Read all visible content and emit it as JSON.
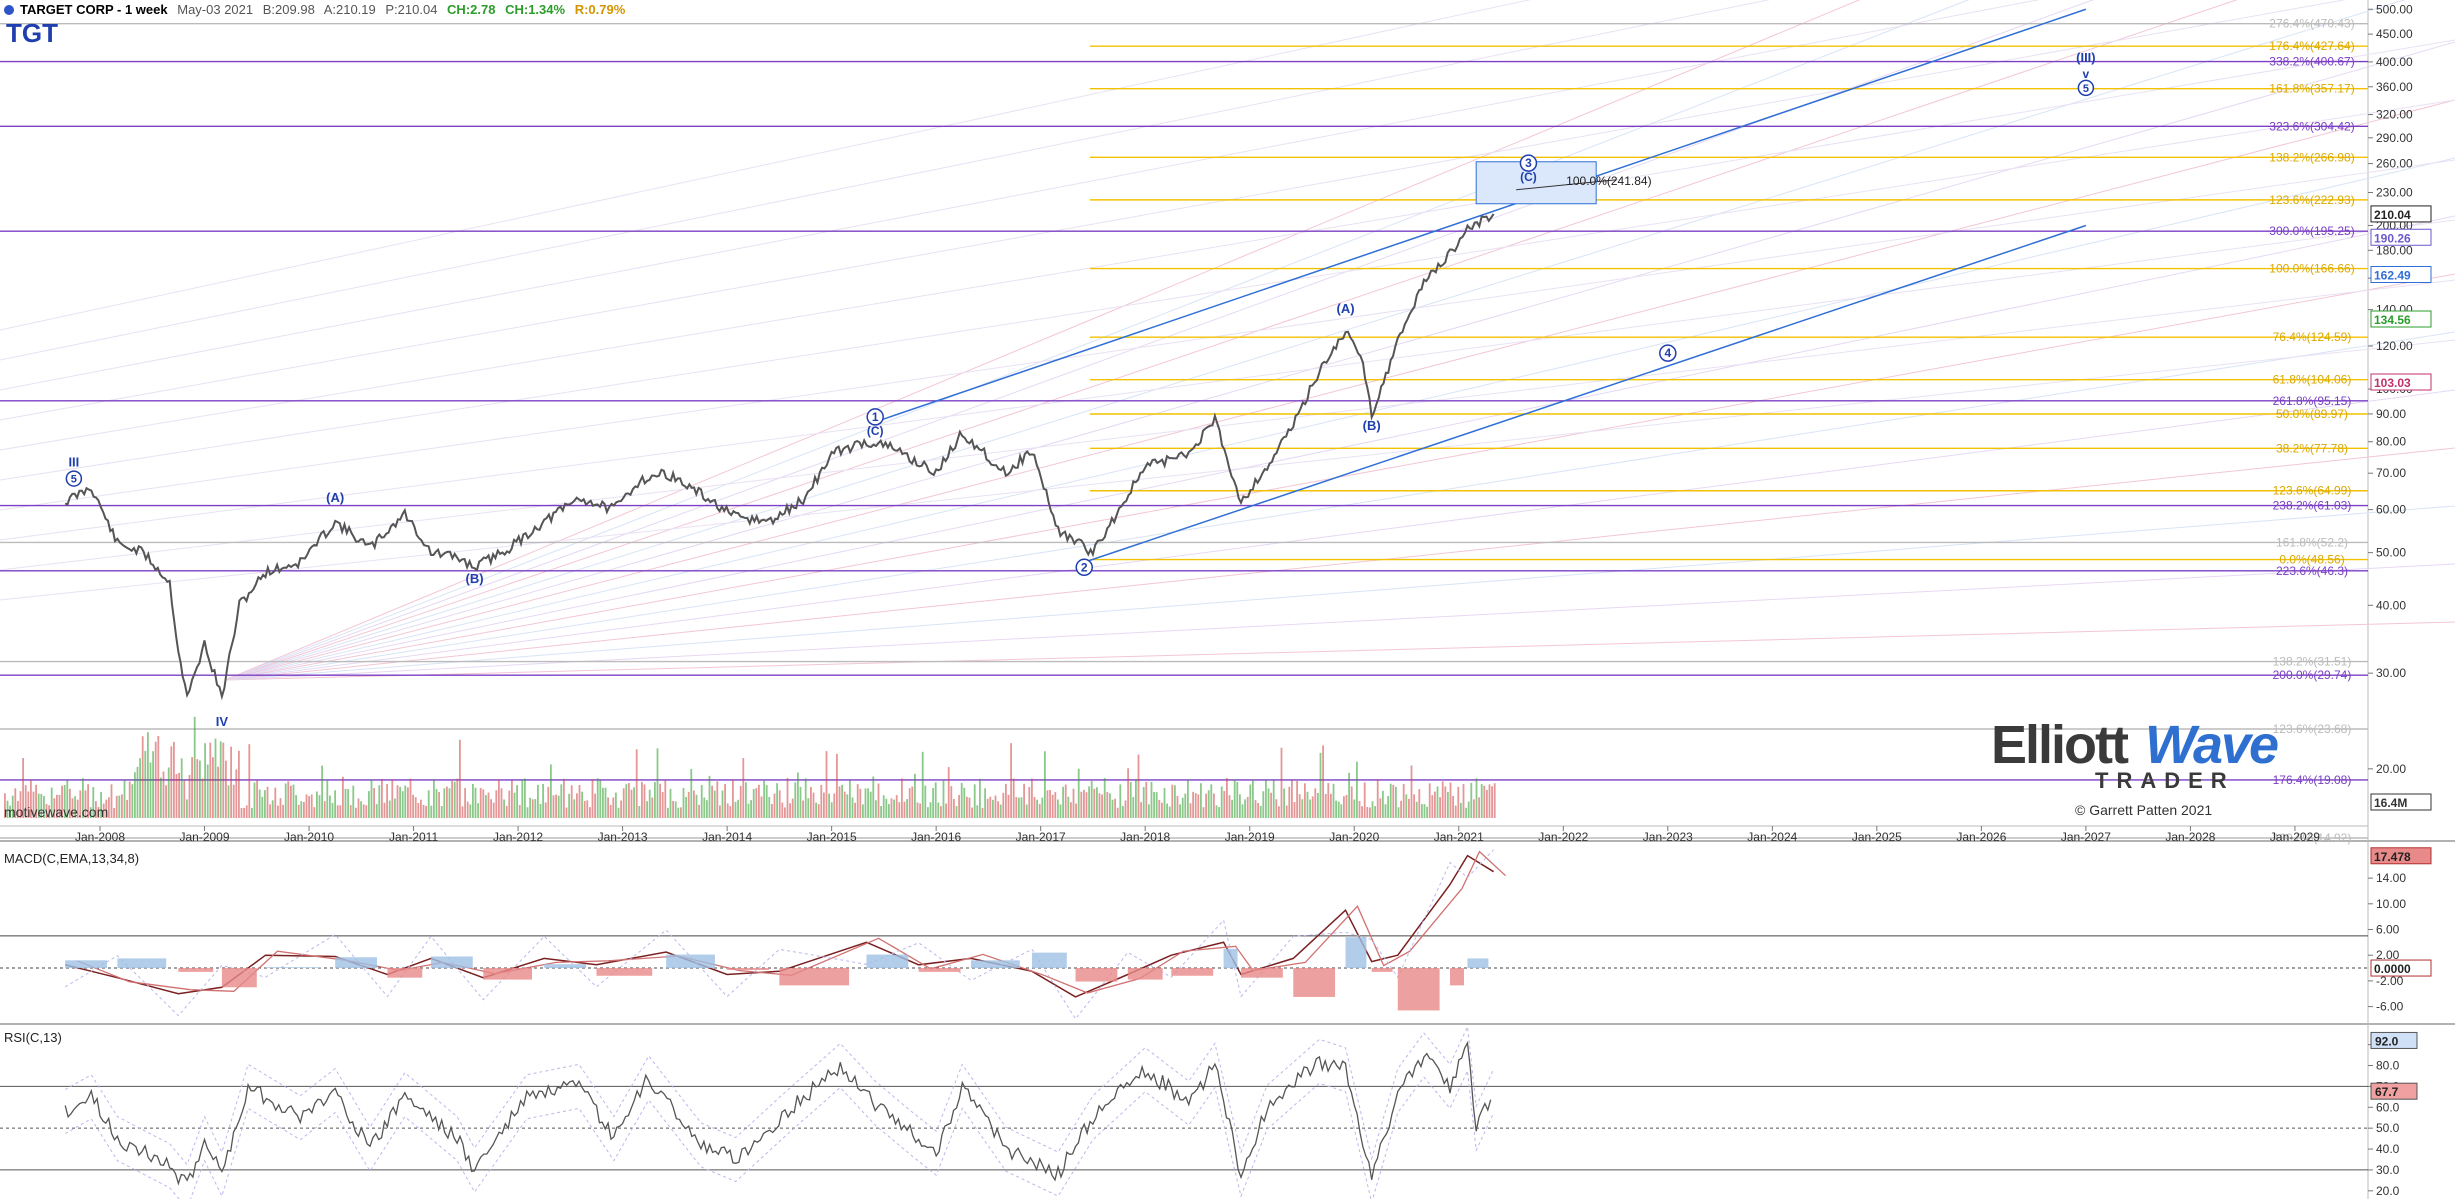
{
  "header": {
    "title": "TARGET CORP - 1 week",
    "date": "May-03 2021",
    "bid": "B:209.98",
    "ask": "A:210.19",
    "price": "P:210.04",
    "change": "CH:2.78",
    "change_pct": "CH:1.34%",
    "range": "R:0.79%",
    "symbol": "TGT"
  },
  "colors": {
    "price": "#555555",
    "channel": "#2f6fd6",
    "fib_purple": "#7a3fc4",
    "fib_gold": "#f2c200",
    "wave_label": "#1f3fae",
    "macd_red": "#b03030",
    "vol_green": "#2a9d2a",
    "vol_red": "#d04040"
  },
  "branding": {
    "logo_left": "Elliott",
    "logo_right": "Wave",
    "logo_sub": "TRADER",
    "copyright": "© Garrett Patten 2021",
    "source": "motivewave.com"
  },
  "panels": {
    "macd_label": "MACD(C,EMA,13,34,8)",
    "rsi_label": "RSI(C,13)"
  },
  "chart_data": [
    {
      "type": "line",
      "title": "TARGET CORP - 1 week",
      "scale": "log",
      "ylim": [
        14.92,
        520
      ],
      "x_ticks": [
        "Jan-2008",
        "Jan-2009",
        "Jan-2010",
        "Jan-2011",
        "Jan-2012",
        "Jan-2013",
        "Jan-2014",
        "Jan-2015",
        "Jan-2016",
        "Jan-2017",
        "Jan-2018",
        "Jan-2019",
        "Jan-2020",
        "Jan-2021",
        "Jan-2022",
        "Jan-2023",
        "Jan-2024",
        "Jan-2025",
        "Jan-2026",
        "Jan-2027",
        "Jan-2028",
        "Jan-2029"
      ],
      "y_ticks": [
        20,
        30,
        40,
        50,
        60,
        70,
        80,
        90,
        100,
        120,
        140,
        160,
        180,
        200,
        230,
        260,
        290,
        320,
        360,
        400,
        450,
        500
      ],
      "y_tick_labels": [
        "20.00",
        "30.00",
        "40.00",
        "50.00",
        "60.00",
        "70.00",
        "80.00",
        "90.00",
        "100.00",
        "120.00",
        "140.00",
        "160.00",
        "180.00",
        "200.00",
        "230.00",
        "260.00",
        "290.00",
        "320.00",
        "360.00",
        "400.00",
        "450.00",
        "500.00"
      ],
      "price_markers": [
        {
          "label": "210.04",
          "value": 210.04,
          "color": "#222222"
        },
        {
          "label": "190.26",
          "value": 190.26,
          "color": "#6a5acd"
        },
        {
          "label": "162.49",
          "value": 162.49,
          "color": "#2f6fd6"
        },
        {
          "label": "134.56",
          "value": 134.56,
          "color": "#2a9d2a"
        },
        {
          "label": "103.03",
          "value": 103.03,
          "color": "#c0306a"
        },
        {
          "label": "16.4M",
          "value": 14.92,
          "color": "#333333"
        }
      ],
      "price": [
        [
          "2007-09",
          62
        ],
        [
          "2007-12",
          66
        ],
        [
          "2008-03",
          52
        ],
        [
          "2008-06",
          50
        ],
        [
          "2008-09",
          44
        ],
        [
          "2008-10",
          33
        ],
        [
          "2008-11",
          27
        ],
        [
          "2009-01",
          34
        ],
        [
          "2009-03",
          27
        ],
        [
          "2009-05",
          40
        ],
        [
          "2009-08",
          46
        ],
        [
          "2009-12",
          48
        ],
        [
          "2010-04",
          57
        ],
        [
          "2010-08",
          51
        ],
        [
          "2010-12",
          59
        ],
        [
          "2011-03",
          50
        ],
        [
          "2011-06",
          49
        ],
        [
          "2011-08",
          47
        ],
        [
          "2011-12",
          51
        ],
        [
          "2012-04",
          57
        ],
        [
          "2012-08",
          63
        ],
        [
          "2012-12",
          60
        ],
        [
          "2013-03",
          68
        ],
        [
          "2013-06",
          70
        ],
        [
          "2013-10",
          64
        ],
        [
          "2014-02",
          58
        ],
        [
          "2014-06",
          57
        ],
        [
          "2014-10",
          63
        ],
        [
          "2015-01",
          76
        ],
        [
          "2015-05",
          80
        ],
        [
          "2015-08",
          78
        ],
        [
          "2016-01",
          70
        ],
        [
          "2016-04",
          83
        ],
        [
          "2016-09",
          70
        ],
        [
          "2016-12",
          77
        ],
        [
          "2017-03",
          55
        ],
        [
          "2017-07",
          50
        ],
        [
          "2017-10",
          60
        ],
        [
          "2018-01",
          72
        ],
        [
          "2018-06",
          76
        ],
        [
          "2018-09",
          88
        ],
        [
          "2018-12",
          62
        ],
        [
          "2019-03",
          72
        ],
        [
          "2019-06",
          86
        ],
        [
          "2019-09",
          108
        ],
        [
          "2019-12",
          128
        ],
        [
          "2020-02",
          112
        ],
        [
          "2020-03",
          90
        ],
        [
          "2020-06",
          122
        ],
        [
          "2020-09",
          158
        ],
        [
          "2020-12",
          177
        ],
        [
          "2021-02",
          198
        ],
        [
          "2021-05",
          210.04
        ]
      ],
      "wave_labels": [
        {
          "label": "III",
          "sub": "5",
          "date": "2007-10",
          "value": 72
        },
        {
          "label": "IV",
          "date": "2009-03",
          "value": 24
        },
        {
          "label": "(A)",
          "date": "2010-04",
          "value": 62
        },
        {
          "label": "(B)",
          "date": "2011-08",
          "value": 44
        },
        {
          "label": "1",
          "sub": "(C)",
          "date": "2015-06",
          "value": 87
        },
        {
          "label": "2",
          "date": "2017-06",
          "value": 46
        },
        {
          "label": "(A)",
          "date": "2019-12",
          "value": 138
        },
        {
          "label": "(B)",
          "date": "2020-03",
          "value": 84
        },
        {
          "label": "3",
          "sub": "(C)",
          "date": "2021-09",
          "value": 255
        },
        {
          "label": "4",
          "date": "2023-01",
          "value": 114
        },
        {
          "label": "(III)",
          "sub": "v 5",
          "date": "2027-01",
          "value": 400
        }
      ],
      "target_box": {
        "label": "100.0%(241.84)"
      },
      "fib_levels": [
        {
          "label": "276.4%(470.43)",
          "value": 470.43,
          "color": "#bbbbbb"
        },
        {
          "label": "176.4%(427.64)",
          "value": 427.64,
          "color": "#f2c200"
        },
        {
          "label": "338.2%(400.67)",
          "value": 400.67,
          "color": "#7a3fc4"
        },
        {
          "label": "161.8%(357.17)",
          "value": 357.17,
          "color": "#f2c200"
        },
        {
          "label": "323.6%(304.42)",
          "value": 304.42,
          "color": "#7a3fc4"
        },
        {
          "label": "138.2%(266.98)",
          "value": 266.98,
          "color": "#f2c200"
        },
        {
          "label": "123.6%(222.93)",
          "value": 222.93,
          "color": "#f2c200"
        },
        {
          "label": "300.0%(195.25)",
          "value": 195.25,
          "color": "#7a3fc4"
        },
        {
          "label": "100.0%(166.66)",
          "value": 166.66,
          "color": "#f2c200"
        },
        {
          "label": "76.4%(124.59)",
          "value": 124.59,
          "color": "#f2c200"
        },
        {
          "label": "61.8%(104.06)",
          "value": 104.06,
          "color": "#f2c200"
        },
        {
          "label": "261.8%(95.15)",
          "value": 95.15,
          "color": "#7a3fc4"
        },
        {
          "label": "50.0%(89.97)",
          "value": 89.97,
          "color": "#f2c200"
        },
        {
          "label": "38.2%(77.78)",
          "value": 77.78,
          "color": "#f2c200"
        },
        {
          "label": "123.6%(64.99)",
          "value": 64.99,
          "color": "#f2c200"
        },
        {
          "label": "238.2%(61.03)",
          "value": 61.03,
          "color": "#7a3fc4"
        },
        {
          "label": "161.8%(52.2)",
          "value": 52.2,
          "color": "#bbbbbb"
        },
        {
          "label": "0.0%(48.56)",
          "value": 48.56,
          "color": "#f2c200"
        },
        {
          "label": "223.6%(46.3)",
          "value": 46.3,
          "color": "#7a3fc4"
        },
        {
          "label": "138.2%(31.51)",
          "value": 31.51,
          "color": "#bbbbbb"
        },
        {
          "label": "200.0%(29.74)",
          "value": 29.74,
          "color": "#7a3fc4"
        },
        {
          "label": "123.6%(23.68)",
          "value": 23.68,
          "color": "#bbbbbb"
        },
        {
          "label": "176.4%(19.08)",
          "value": 19.08,
          "color": "#7a3fc4"
        },
        {
          "label": "100.0%(14.92)",
          "value": 14.92,
          "color": "#bbbbbb"
        }
      ],
      "channel": {
        "upper": [
          [
            "2015-06",
            87
          ],
          [
            "2027-01",
            500
          ]
        ],
        "lower": [
          [
            "2017-06",
            48
          ],
          [
            "2027-01",
            200
          ]
        ]
      }
    },
    {
      "type": "line",
      "title": "MACD(C,EMA,13,34,8)",
      "ylim": [
        -7,
        19
      ],
      "y_ticks": [
        -6,
        -2,
        2,
        6,
        10,
        14
      ],
      "y_tick_labels": [
        "-6.00",
        "-2.00",
        "2.00",
        "6.00",
        "10.00",
        "14.00"
      ],
      "markers": [
        {
          "label": "17.478",
          "value": 17.478
        },
        {
          "label": "0.0000",
          "value": 0
        }
      ],
      "macd": [
        [
          "2007-09",
          0.5
        ],
        [
          "2008-03",
          -1.5
        ],
        [
          "2008-10",
          -4
        ],
        [
          "2009-03",
          -3
        ],
        [
          "2009-08",
          2
        ],
        [
          "2010-04",
          1.8
        ],
        [
          "2010-10",
          -1
        ],
        [
          "2011-03",
          1.5
        ],
        [
          "2011-09",
          -1.5
        ],
        [
          "2012-04",
          1.5
        ],
        [
          "2012-10",
          0.5
        ],
        [
          "2013-06",
          2.5
        ],
        [
          "2014-01",
          -1
        ],
        [
          "2014-07",
          -0.5
        ],
        [
          "2015-05",
          4
        ],
        [
          "2015-11",
          0.5
        ],
        [
          "2016-05",
          1.5
        ],
        [
          "2016-12",
          -0.5
        ],
        [
          "2017-05",
          -4.5
        ],
        [
          "2017-11",
          -1
        ],
        [
          "2018-04",
          2
        ],
        [
          "2018-10",
          4
        ],
        [
          "2018-12",
          -1
        ],
        [
          "2019-06",
          1.5
        ],
        [
          "2019-12",
          9
        ],
        [
          "2020-03",
          1
        ],
        [
          "2020-06",
          2
        ],
        [
          "2020-12",
          13
        ],
        [
          "2021-02",
          17.5
        ],
        [
          "2021-05",
          15
        ]
      ]
    },
    {
      "type": "line",
      "title": "RSI(C,13)",
      "ylim": [
        18,
        97
      ],
      "y_ticks": [
        20,
        30,
        40,
        50,
        60,
        70,
        80,
        90
      ],
      "y_tick_labels": [
        "20.0",
        "30.0",
        "40.0",
        "50.0",
        "60.0",
        "70.0",
        "80.0",
        "90.0"
      ],
      "markers": [
        {
          "label": "92.0",
          "value": 92.0
        },
        {
          "label": "67.7",
          "value": 67.7
        }
      ],
      "rsi": [
        [
          "2007-09",
          58
        ],
        [
          "2007-12",
          65
        ],
        [
          "2008-03",
          45
        ],
        [
          "2008-09",
          32
        ],
        [
          "2008-11",
          22
        ],
        [
          "2009-01",
          45
        ],
        [
          "2009-03",
          28
        ],
        [
          "2009-06",
          70
        ],
        [
          "2009-12",
          55
        ],
        [
          "2010-04",
          68
        ],
        [
          "2010-08",
          40
        ],
        [
          "2010-12",
          66
        ],
        [
          "2011-06",
          45
        ],
        [
          "2011-08",
          30
        ],
        [
          "2012-02",
          65
        ],
        [
          "2012-08",
          70
        ],
        [
          "2012-12",
          45
        ],
        [
          "2013-04",
          74
        ],
        [
          "2013-10",
          42
        ],
        [
          "2014-02",
          35
        ],
        [
          "2014-08",
          58
        ],
        [
          "2015-02",
          80
        ],
        [
          "2015-06",
          62
        ],
        [
          "2015-10",
          48
        ],
        [
          "2016-01",
          38
        ],
        [
          "2016-04",
          70
        ],
        [
          "2016-09",
          40
        ],
        [
          "2017-03",
          28
        ],
        [
          "2017-07",
          55
        ],
        [
          "2018-01",
          78
        ],
        [
          "2018-06",
          62
        ],
        [
          "2018-09",
          80
        ],
        [
          "2018-12",
          28
        ],
        [
          "2019-03",
          60
        ],
        [
          "2019-09",
          82
        ],
        [
          "2019-12",
          78
        ],
        [
          "2020-03",
          25
        ],
        [
          "2020-06",
          68
        ],
        [
          "2020-09",
          85
        ],
        [
          "2020-12",
          70
        ],
        [
          "2021-02",
          88
        ],
        [
          "2021-03",
          50
        ],
        [
          "2021-05",
          67.7
        ]
      ]
    }
  ]
}
